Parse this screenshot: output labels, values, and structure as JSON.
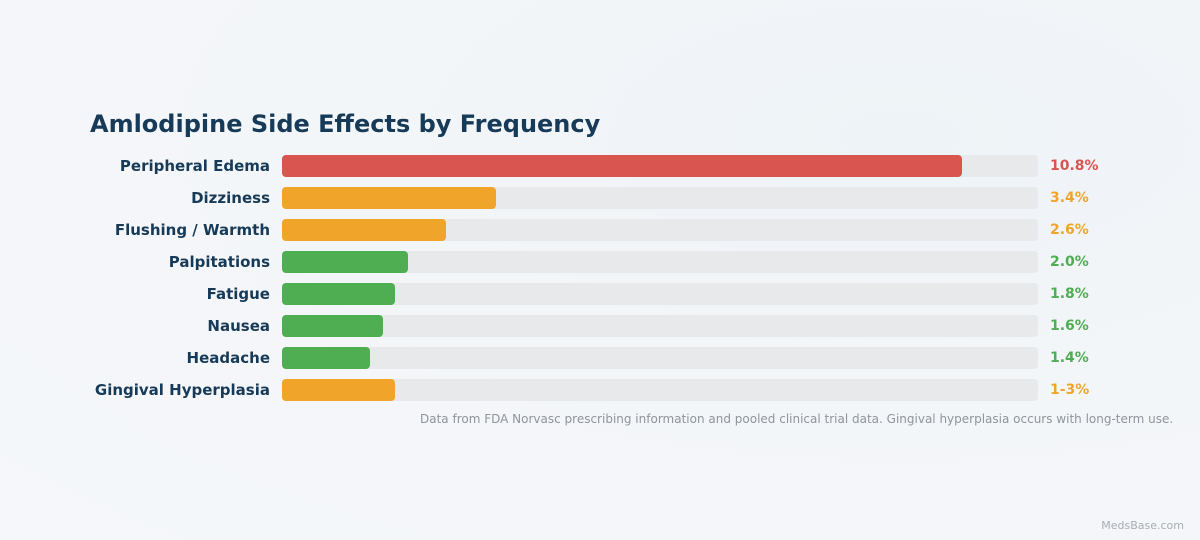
{
  "chart_data": {
    "type": "bar",
    "orientation": "horizontal",
    "title": "Amlodipine Side Effects by Frequency",
    "xlim": [
      0,
      12
    ],
    "categories": [
      "Peripheral Edema",
      "Dizziness",
      "Flushing / Warmth",
      "Palpitations",
      "Fatigue",
      "Nausea",
      "Headache",
      "Gingival Hyperplasia"
    ],
    "values": [
      10.8,
      3.4,
      2.6,
      2.0,
      1.8,
      1.6,
      1.4,
      1.8
    ],
    "value_labels": [
      "10.8%",
      "3.4%",
      "2.6%",
      "2.0%",
      "1.8%",
      "1.6%",
      "1.4%",
      "1-3%"
    ],
    "colors": [
      "#d95550",
      "#f0a52a",
      "#f0a52a",
      "#4fad52",
      "#4fad52",
      "#4fad52",
      "#4fad52",
      "#f0a52a"
    ],
    "track_color": "#e8e9eb",
    "legend": "none",
    "grid": false,
    "footnote": "Data from FDA Norvasc prescribing information and pooled clinical trial data. Gingival hyperplasia occurs with long-term use."
  },
  "watermark": "MedsBase.com"
}
